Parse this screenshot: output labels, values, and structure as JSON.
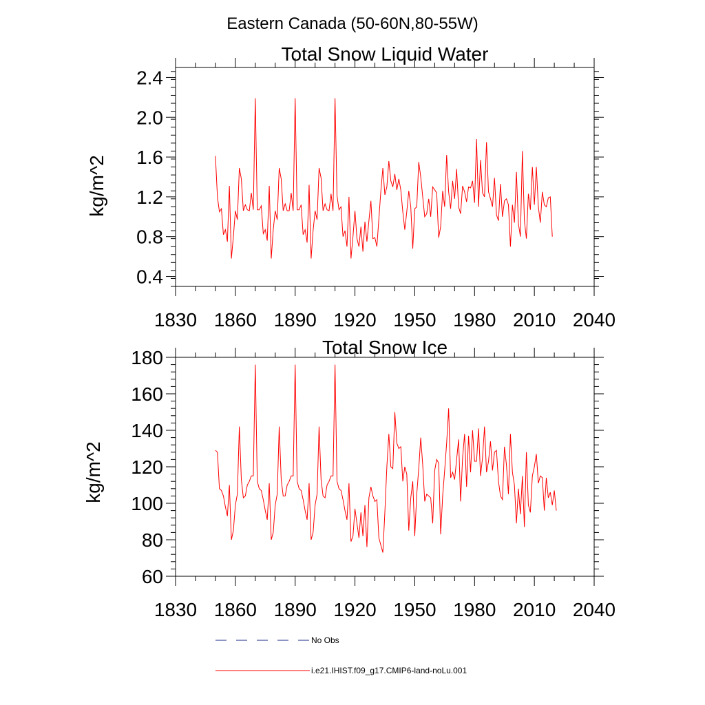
{
  "figure_title": "Eastern Canada (50-60N,80-55W)",
  "legend": {
    "entries": [
      {
        "label": "No Obs",
        "color": "#1a2a8a",
        "style": "dashed"
      },
      {
        "label": "i.e21.IHIST.f09_g17.CMIP6-land-noLu.001",
        "color": "#ff0000",
        "style": "solid"
      }
    ]
  },
  "chart_data": [
    {
      "type": "line",
      "title": "Total Snow Liquid Water",
      "xlabel": "",
      "ylabel": "kg/m^2",
      "xlim": [
        1830,
        2040
      ],
      "ylim": [
        0.3,
        2.5
      ],
      "xticks": [
        1830,
        1860,
        1890,
        1920,
        1950,
        1980,
        2010,
        2040
      ],
      "yticks": [
        0.4,
        0.8,
        1.2,
        1.6,
        2.0,
        2.4
      ],
      "ytick_labels": [
        "0.4",
        "0.8",
        "1.2",
        "1.6",
        "2.0",
        "2.4"
      ],
      "grid": false,
      "series": [
        {
          "name": "i.e21.IHIST.f09_g17.CMIP6-land-noLu.001",
          "color": "#ff0000",
          "x_start": 1850,
          "x_step": 1,
          "values": [
            1.61,
            1.2,
            1.05,
            1.08,
            0.82,
            0.87,
            0.75,
            1.31,
            0.58,
            0.8,
            1.06,
            0.97,
            1.49,
            1.38,
            1.06,
            1.12,
            1.07,
            1.06,
            1.24,
            1.07,
            2.19,
            1.07,
            1.07,
            1.11,
            0.83,
            0.87,
            0.76,
            1.31,
            0.58,
            0.87,
            1.06,
            0.97,
            1.49,
            1.38,
            1.06,
            1.13,
            1.06,
            1.06,
            1.24,
            1.06,
            2.19,
            1.07,
            1.07,
            1.12,
            0.82,
            0.87,
            0.74,
            1.32,
            0.58,
            0.86,
            1.06,
            0.97,
            1.49,
            1.39,
            1.06,
            1.13,
            1.07,
            1.06,
            1.23,
            1.06,
            2.19,
            1.21,
            1.07,
            1.1,
            0.8,
            0.86,
            0.7,
            1.2,
            0.58,
            0.8,
            1.06,
            0.78,
            0.7,
            0.9,
            0.65,
            0.95,
            0.75,
            0.96,
            1.16,
            0.78,
            0.79,
            0.7,
            0.98,
            1.26,
            1.49,
            1.22,
            1.3,
            1.56,
            1.36,
            1.3,
            1.43,
            1.27,
            1.38,
            1.27,
            1.05,
            0.87,
            1.05,
            1.26,
            1.1,
            0.68,
            1.08,
            1.1,
            1.55,
            1.4,
            1.2,
            1.0,
            1.03,
            1.18,
            1.0,
            1.3,
            1.27,
            1.24,
            0.79,
            0.9,
            1.26,
            1.1,
            1.62,
            1.25,
            1.08,
            1.36,
            1.18,
            1.48,
            1.1,
            1.03,
            1.31,
            1.25,
            1.15,
            1.3,
            1.29,
            1.36,
            1.14,
            1.78,
            1.1,
            1.57,
            1.24,
            1.2,
            1.75,
            1.25,
            1.18,
            1.1,
            1.39,
            1.02,
            0.96,
            1.33,
            1.0,
            1.16,
            1.18,
            1.12,
            0.7,
            1.12,
            0.94,
            1.45,
            0.93,
            0.8,
            1.66,
            0.96,
            0.78,
            1.23,
            1.07,
            1.5,
            1.12,
            1.5,
            1.1,
            0.94,
            1.25,
            1.12,
            1.1,
            1.19,
            1.2,
            0.8
          ]
        }
      ]
    },
    {
      "type": "line",
      "title": "Total Snow Ice",
      "xlabel": "",
      "ylabel": "kg/m^2",
      "xlim": [
        1830,
        2040
      ],
      "ylim": [
        60,
        180
      ],
      "xticks": [
        1830,
        1860,
        1890,
        1920,
        1950,
        1980,
        2010,
        2040
      ],
      "yticks": [
        60,
        80,
        100,
        120,
        140,
        160,
        180
      ],
      "ytick_labels": [
        "60",
        "80",
        "100",
        "120",
        "140",
        "160",
        "180"
      ],
      "grid": false,
      "series": [
        {
          "name": "i.e21.IHIST.f09_g17.CMIP6-land-noLu.001",
          "color": "#ff0000",
          "x_start": 1850,
          "x_step": 1,
          "values": [
            129,
            128,
            108,
            107,
            104,
            98,
            93,
            110,
            80,
            85,
            99,
            105,
            142,
            113,
            103,
            104,
            110,
            112,
            115,
            115,
            176,
            112,
            108,
            107,
            102,
            96,
            91,
            111,
            80,
            84,
            99,
            105,
            142,
            113,
            104,
            104,
            110,
            112,
            115,
            115,
            176,
            112,
            108,
            107,
            102,
            96,
            91,
            111,
            80,
            84,
            99,
            105,
            142,
            113,
            104,
            103,
            110,
            112,
            115,
            115,
            176,
            112,
            108,
            107,
            102,
            96,
            91,
            111,
            79,
            82,
            97,
            89,
            81,
            95,
            82,
            99,
            76,
            103,
            109,
            104,
            101,
            102,
            81,
            77,
            73,
            95,
            120,
            138,
            120,
            119,
            150,
            133,
            130,
            131,
            112,
            120,
            116,
            85,
            103,
            112,
            82,
            105,
            119,
            136,
            121,
            101,
            105,
            104,
            103,
            89,
            118,
            124,
            122,
            83,
            104,
            118,
            133,
            152,
            114,
            117,
            113,
            124,
            135,
            101,
            125,
            138,
            109,
            137,
            117,
            140,
            123,
            123,
            141,
            115,
            125,
            142,
            117,
            123,
            134,
            118,
            128,
            129,
            112,
            104,
            102,
            131,
            121,
            105,
            138,
            117,
            110,
            89,
            108,
            94,
            115,
            87,
            128,
            99,
            95,
            115,
            120,
            127,
            111,
            115,
            114,
            96,
            114,
            103,
            106,
            99,
            107,
            96
          ]
        }
      ]
    }
  ]
}
